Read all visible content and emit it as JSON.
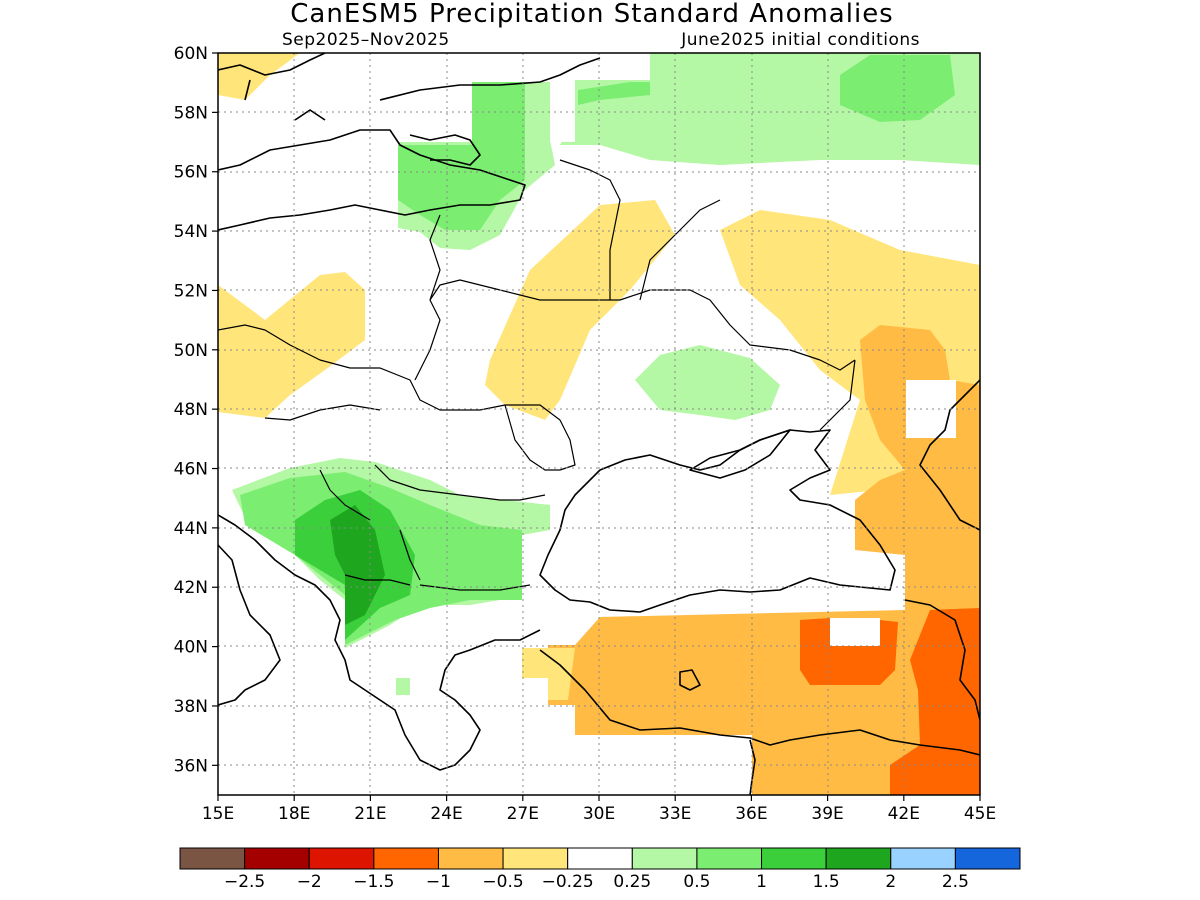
{
  "title": "CanESM5 Precipitation Standard Anomalies",
  "subtitle_left": "Sep2025–Nov2025",
  "subtitle_right": "June2025 initial conditions",
  "map": {
    "lon_range": [
      15,
      45
    ],
    "lat_range": [
      35,
      60
    ],
    "lon_ticks": [
      "15E",
      "18E",
      "21E",
      "24E",
      "27E",
      "30E",
      "33E",
      "36E",
      "39E",
      "42E",
      "45E"
    ],
    "lat_ticks": [
      "60N",
      "58N",
      "56N",
      "54N",
      "52N",
      "50N",
      "48N",
      "46N",
      "44N",
      "42N",
      "40N",
      "38N",
      "36N"
    ]
  },
  "legend": {
    "labels": [
      "−2.5",
      "−2",
      "−1.5",
      "−1",
      "−0.5",
      "−0.25",
      "0.25",
      "0.5",
      "1",
      "1.5",
      "2",
      "2.5"
    ],
    "colors": [
      "#7b5544",
      "#a50000",
      "#dd1500",
      "#ff6600",
      "#ffbb44",
      "#ffe57a",
      "#ffffff",
      "#b4f7a4",
      "#7bee72",
      "#3bcf3b",
      "#1ea61e",
      "#99d1ff",
      "#1566dd"
    ]
  },
  "colors": {
    "neg_025": "#ffe57a",
    "neg_05": "#ffbb44",
    "neg_1": "#ff6600",
    "pos_025": "#b4f7a4",
    "pos_05": "#7bee72",
    "pos_1": "#3bcf3b",
    "pos_15": "#1ea61e"
  }
}
